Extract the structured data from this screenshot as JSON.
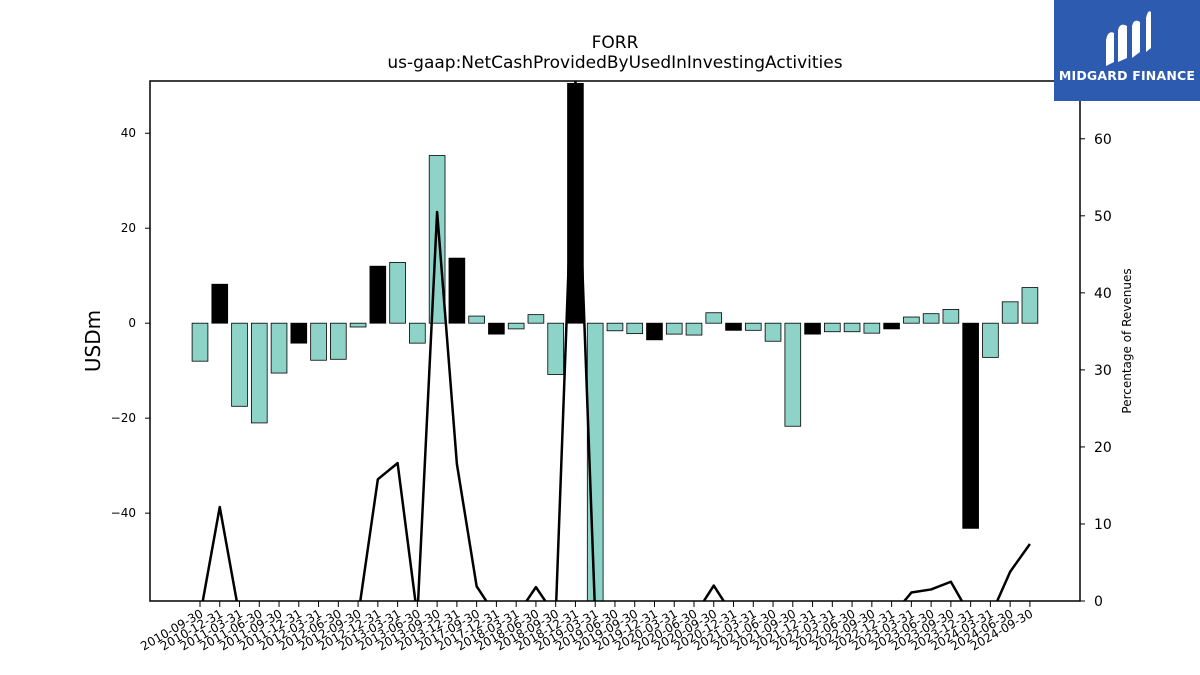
{
  "chart_data": {
    "type": "bar",
    "title": "FORR",
    "subtitle": "us-gaap:NetCashProvidedByUsedInInvestingActivities",
    "ylabel": "USDm",
    "y2label": "Percentage of Revenues",
    "ylim": [
      -58.5,
      51
    ],
    "y2lim": [
      0,
      67.5
    ],
    "yticks": [
      -40,
      -20,
      0,
      20,
      40
    ],
    "y2ticks": [
      0,
      10,
      20,
      30,
      40,
      50,
      60
    ],
    "categories": [
      "2010-09-30",
      "2010-12-31",
      "2011-03-31",
      "2011-06-30",
      "2011-09-30",
      "2011-12-31",
      "2012-03-31",
      "2012-06-30",
      "2012-09-30",
      "2012-12-31",
      "2013-03-31",
      "2013-06-30",
      "2013-09-30",
      "2013-12-31",
      "2017-09-30",
      "2017-12-31",
      "2018-03-31",
      "2018-06-30",
      "2018-09-30",
      "2018-12-31",
      "2019-03-31",
      "2019-06-30",
      "2019-09-30",
      "2019-12-31",
      "2020-03-31",
      "2020-06-30",
      "2020-09-30",
      "2020-12-31",
      "2021-03-31",
      "2021-06-30",
      "2021-09-30",
      "2021-12-31",
      "2022-03-31",
      "2022-06-30",
      "2022-09-30",
      "2022-12-31",
      "2023-03-31",
      "2023-06-30",
      "2023-09-30",
      "2023-12-31",
      "2024-03-31",
      "2024-06-30",
      "2024-09-30"
    ],
    "series": [
      {
        "type": "bar",
        "axis": "left",
        "values": [
          -8.0,
          8.2,
          -17.5,
          -21.0,
          -10.5,
          -4.2,
          -7.8,
          -7.6,
          -0.8,
          12.0,
          12.8,
          -4.2,
          35.3,
          13.7,
          1.5,
          -2.3,
          -1.2,
          1.8,
          -10.8,
          50.5,
          -58.5,
          -1.6,
          -2.2,
          -3.5,
          -2.3,
          -2.5,
          2.2,
          -1.5,
          -1.5,
          -3.8,
          -21.7,
          -2.3,
          -1.8,
          -1.8,
          -2.1,
          -1.2,
          1.3,
          2.0,
          2.9,
          -43.2,
          -7.2,
          4.5,
          7.5
        ],
        "colors": [
          "#8dd3c7",
          "#000000",
          "#8dd3c7",
          "#8dd3c7",
          "#8dd3c7",
          "#000000",
          "#8dd3c7",
          "#8dd3c7",
          "#8dd3c7",
          "#000000",
          "#8dd3c7",
          "#8dd3c7",
          "#8dd3c7",
          "#000000",
          "#8dd3c7",
          "#000000",
          "#8dd3c7",
          "#8dd3c7",
          "#8dd3c7",
          "#000000",
          "#8dd3c7",
          "#8dd3c7",
          "#8dd3c7",
          "#000000",
          "#8dd3c7",
          "#8dd3c7",
          "#8dd3c7",
          "#000000",
          "#8dd3c7",
          "#8dd3c7",
          "#8dd3c7",
          "#000000",
          "#8dd3c7",
          "#8dd3c7",
          "#8dd3c7",
          "#000000",
          "#8dd3c7",
          "#8dd3c7",
          "#8dd3c7",
          "#000000",
          "#8dd3c7",
          "#8dd3c7",
          "#8dd3c7"
        ]
      },
      {
        "type": "line",
        "axis": "right",
        "values": [
          -2,
          12.2,
          -2,
          -2,
          -2,
          -2,
          -2,
          -2,
          -2,
          15.8,
          17.9,
          -2,
          50.5,
          17.8,
          1.9,
          -2,
          -2,
          1.8,
          -2,
          67.5,
          -2,
          -2,
          -2,
          -2,
          -2,
          -2,
          2.0,
          -2,
          -2,
          -2,
          -2,
          -2,
          -2,
          -2,
          -2,
          -2,
          1.1,
          1.5,
          2.5,
          -2,
          -2,
          3.8,
          7.4
        ]
      }
    ],
    "colors": {
      "bar_positive_quarter": "#8dd3c7",
      "bar_year_end": "#000000",
      "line": "#000000",
      "axis": "#000000"
    },
    "grid": false,
    "legend": "none"
  },
  "logo": {
    "text": "MIDGARD FINANCE",
    "background": "#2d5bb0",
    "icon": "midgard-m-logo-icon"
  }
}
